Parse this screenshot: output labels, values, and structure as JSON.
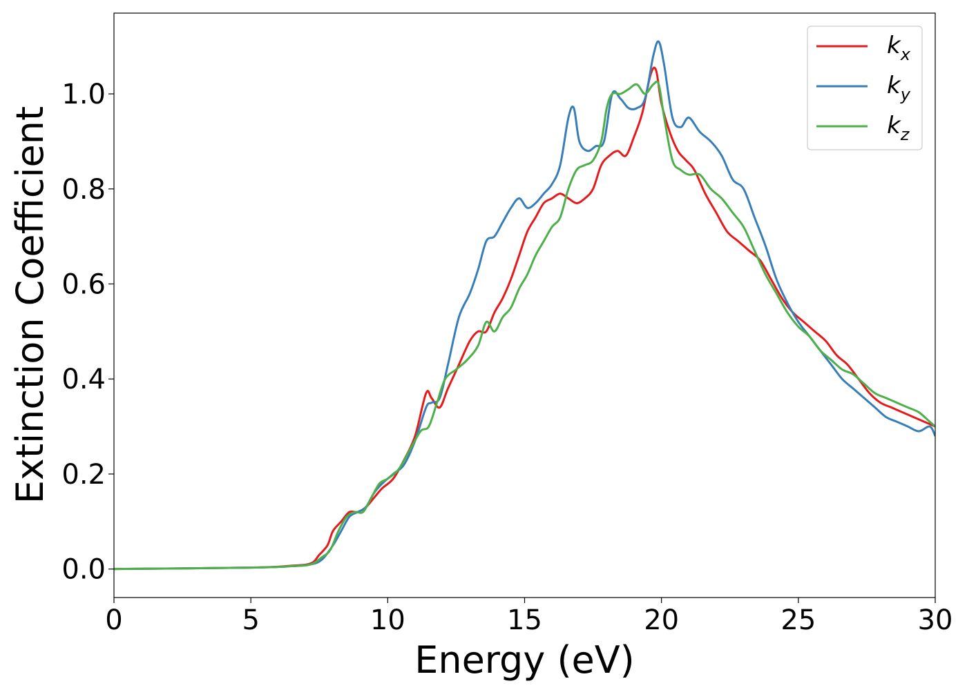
{
  "chart_data": {
    "type": "line",
    "title": "",
    "xlabel": "Energy (eV)",
    "ylabel": "Extinction Coefficient",
    "xlim": [
      0,
      30
    ],
    "ylim": [
      -0.06,
      1.17
    ],
    "xticks": [
      0,
      5,
      10,
      15,
      20,
      25,
      30
    ],
    "xtick_labels": [
      "0",
      "5",
      "10",
      "15",
      "20",
      "25",
      "30"
    ],
    "yticks": [
      0.0,
      0.2,
      0.4,
      0.6,
      0.8,
      1.0
    ],
    "ytick_labels": [
      "0.0",
      "0.2",
      "0.4",
      "0.6",
      "0.8",
      "1.0"
    ],
    "grid": false,
    "legend_position": "top-right",
    "series": [
      {
        "name": "k",
        "subscript": "x",
        "color": "#e41a1c",
        "x": [
          0,
          5,
          6.5,
          7.2,
          7.5,
          7.8,
          8.0,
          8.3,
          8.6,
          8.9,
          9.2,
          9.5,
          9.8,
          10.2,
          10.6,
          11.0,
          11.4,
          11.6,
          11.9,
          12.2,
          12.6,
          13.0,
          13.3,
          13.6,
          13.9,
          14.2,
          14.5,
          14.8,
          15.1,
          15.4,
          15.7,
          16.0,
          16.3,
          16.6,
          16.9,
          17.2,
          17.5,
          17.8,
          18.1,
          18.4,
          18.7,
          19.0,
          19.3,
          19.6,
          19.8,
          20.0,
          20.3,
          20.6,
          20.9,
          21.2,
          21.6,
          22.0,
          22.4,
          22.8,
          23.2,
          23.6,
          24.0,
          24.4,
          24.8,
          25.2,
          25.6,
          26.0,
          26.4,
          26.8,
          27.2,
          27.6,
          28.0,
          28.4,
          28.8,
          29.2,
          29.6,
          30.0
        ],
        "y": [
          0.0,
          0.003,
          0.007,
          0.012,
          0.03,
          0.05,
          0.08,
          0.1,
          0.12,
          0.12,
          0.13,
          0.15,
          0.17,
          0.19,
          0.23,
          0.28,
          0.37,
          0.36,
          0.34,
          0.38,
          0.43,
          0.48,
          0.5,
          0.5,
          0.54,
          0.57,
          0.61,
          0.66,
          0.71,
          0.74,
          0.77,
          0.78,
          0.79,
          0.78,
          0.77,
          0.78,
          0.8,
          0.85,
          0.87,
          0.88,
          0.87,
          0.91,
          0.96,
          1.04,
          1.05,
          0.98,
          0.92,
          0.88,
          0.86,
          0.84,
          0.79,
          0.75,
          0.71,
          0.69,
          0.67,
          0.65,
          0.61,
          0.57,
          0.54,
          0.52,
          0.5,
          0.48,
          0.45,
          0.43,
          0.4,
          0.37,
          0.35,
          0.34,
          0.33,
          0.32,
          0.31,
          0.3
        ]
      },
      {
        "name": "k",
        "subscript": "y",
        "color": "#377eb8",
        "x": [
          0,
          5,
          6.5,
          7.2,
          7.6,
          8.0,
          8.3,
          8.6,
          8.9,
          9.2,
          9.5,
          9.8,
          10.2,
          10.6,
          11.0,
          11.4,
          11.6,
          11.9,
          12.2,
          12.6,
          13.0,
          13.3,
          13.6,
          13.9,
          14.2,
          14.5,
          14.8,
          15.1,
          15.4,
          15.7,
          16.0,
          16.3,
          16.6,
          16.8,
          17.0,
          17.3,
          17.6,
          17.9,
          18.2,
          18.5,
          18.8,
          19.1,
          19.4,
          19.7,
          19.9,
          20.1,
          20.4,
          20.7,
          21.0,
          21.4,
          21.8,
          22.2,
          22.6,
          23.0,
          23.4,
          23.8,
          24.2,
          24.6,
          25.0,
          25.4,
          25.8,
          26.2,
          26.6,
          27.0,
          27.4,
          27.8,
          28.2,
          28.6,
          29.0,
          29.4,
          29.8,
          30.0
        ],
        "y": [
          0.0,
          0.003,
          0.006,
          0.01,
          0.02,
          0.05,
          0.08,
          0.11,
          0.12,
          0.13,
          0.16,
          0.18,
          0.2,
          0.22,
          0.27,
          0.34,
          0.35,
          0.36,
          0.43,
          0.53,
          0.58,
          0.63,
          0.69,
          0.7,
          0.73,
          0.76,
          0.78,
          0.76,
          0.77,
          0.79,
          0.81,
          0.85,
          0.95,
          0.97,
          0.9,
          0.88,
          0.89,
          0.9,
          1.0,
          0.99,
          0.97,
          0.97,
          0.99,
          1.08,
          1.11,
          1.06,
          0.95,
          0.93,
          0.95,
          0.92,
          0.9,
          0.87,
          0.82,
          0.8,
          0.74,
          0.68,
          0.61,
          0.56,
          0.52,
          0.49,
          0.46,
          0.43,
          0.4,
          0.38,
          0.36,
          0.34,
          0.32,
          0.31,
          0.3,
          0.29,
          0.3,
          0.28
        ]
      },
      {
        "name": "k",
        "subscript": "z",
        "color": "#4daf4a",
        "x": [
          0,
          5,
          6.5,
          7.2,
          7.6,
          7.9,
          8.2,
          8.5,
          8.8,
          9.1,
          9.4,
          9.7,
          10.0,
          10.4,
          10.8,
          11.2,
          11.5,
          11.8,
          12.1,
          12.5,
          12.9,
          13.3,
          13.6,
          13.9,
          14.2,
          14.5,
          14.8,
          15.1,
          15.4,
          15.7,
          16.0,
          16.3,
          16.6,
          16.9,
          17.2,
          17.5,
          17.8,
          18.0,
          18.2,
          18.5,
          18.8,
          19.1,
          19.4,
          19.7,
          19.9,
          20.1,
          20.4,
          20.7,
          21.0,
          21.4,
          21.8,
          22.2,
          22.6,
          23.0,
          23.4,
          23.8,
          24.2,
          24.6,
          25.0,
          25.4,
          25.8,
          26.2,
          26.6,
          27.0,
          27.4,
          27.8,
          28.2,
          28.6,
          29.0,
          29.4,
          29.8,
          30.0
        ],
        "y": [
          0.0,
          0.003,
          0.006,
          0.01,
          0.025,
          0.04,
          0.08,
          0.11,
          0.12,
          0.12,
          0.15,
          0.18,
          0.19,
          0.21,
          0.25,
          0.29,
          0.3,
          0.35,
          0.4,
          0.42,
          0.44,
          0.47,
          0.52,
          0.5,
          0.53,
          0.55,
          0.59,
          0.62,
          0.66,
          0.69,
          0.72,
          0.74,
          0.8,
          0.84,
          0.85,
          0.86,
          0.9,
          0.97,
          1.0,
          1.0,
          1.01,
          1.02,
          1.0,
          1.02,
          1.02,
          0.95,
          0.86,
          0.84,
          0.83,
          0.83,
          0.8,
          0.78,
          0.75,
          0.72,
          0.67,
          0.62,
          0.58,
          0.54,
          0.51,
          0.49,
          0.46,
          0.44,
          0.42,
          0.41,
          0.39,
          0.37,
          0.36,
          0.35,
          0.34,
          0.33,
          0.31,
          0.3
        ]
      }
    ]
  }
}
